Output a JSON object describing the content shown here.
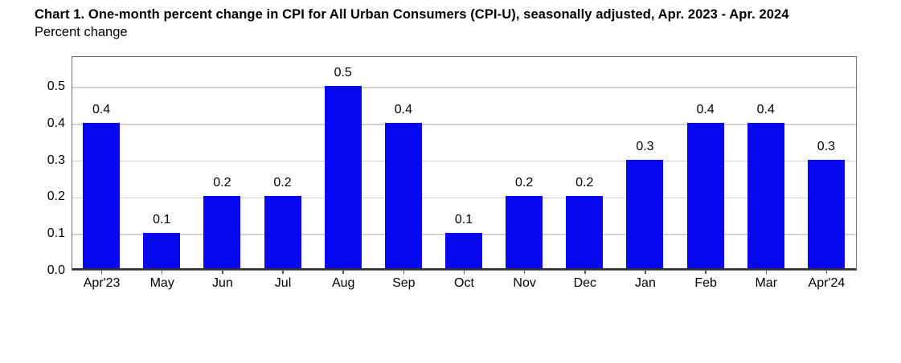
{
  "header": {
    "title": "Chart 1. One-month percent change in CPI for All Urban Consumers (CPI-U), seasonally adjusted, Apr. 2023 - Apr. 2024",
    "subtitle": "Percent change"
  },
  "chart_data": {
    "type": "bar",
    "title": "Chart 1. One-month percent change in CPI for All Urban Consumers (CPI-U), seasonally adjusted, Apr. 2023 - Apr. 2024",
    "ylabel": "Percent change",
    "xlabel": "",
    "categories": [
      "Apr'23",
      "May",
      "Jun",
      "Jul",
      "Aug",
      "Sep",
      "Oct",
      "Nov",
      "Dec",
      "Jan",
      "Feb",
      "Mar",
      "Apr'24"
    ],
    "values": [
      0.4,
      0.1,
      0.2,
      0.2,
      0.5,
      0.4,
      0.1,
      0.2,
      0.2,
      0.3,
      0.4,
      0.4,
      0.3
    ],
    "value_labels": [
      "0.4",
      "0.1",
      "0.2",
      "0.2",
      "0.5",
      "0.4",
      "0.1",
      "0.2",
      "0.2",
      "0.3",
      "0.4",
      "0.4",
      "0.3"
    ],
    "yticks": [
      "0.0",
      "0.1",
      "0.2",
      "0.3",
      "0.4",
      "0.5"
    ],
    "ylim": [
      0,
      0.583
    ],
    "grid": true,
    "legend": false,
    "bar_color": "#0808f0"
  },
  "colors": {
    "bar": "#0808f0",
    "gridline": "#d2d2d2",
    "plot_border": "#6e6e6e",
    "axis_line": "#2f2f2f",
    "text": "#000000",
    "background": "#ffffff"
  }
}
